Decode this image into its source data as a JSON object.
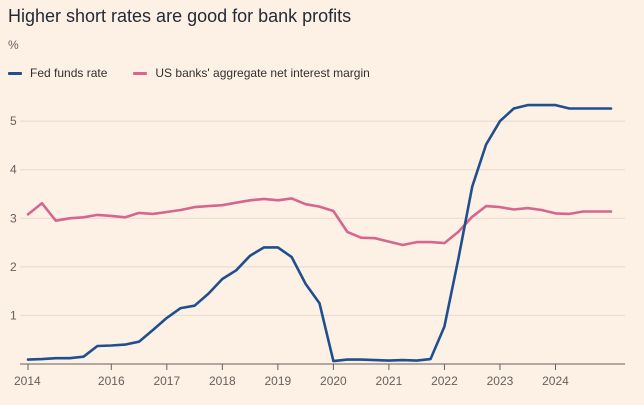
{
  "title": "Higher short rates are good for bank profits",
  "unit_label": "%",
  "colors": {
    "background": "#fdf1e6",
    "grid": "#e6d9ce",
    "axis": "#66605c"
  },
  "chart_data": {
    "type": "line",
    "title": "Higher short rates are good for bank profits",
    "ylabel": "%",
    "xlabel": "",
    "ylim": [
      0,
      5.6
    ],
    "xlim": [
      2014.0,
      2024.5
    ],
    "yticks": [
      1,
      2,
      3,
      4,
      5
    ],
    "xticks": [
      {
        "value": 2014.0,
        "label": "2014"
      },
      {
        "value": 2015.5,
        "label": "2016"
      },
      {
        "value": 2016.5,
        "label": "2017"
      },
      {
        "value": 2017.5,
        "label": "2018"
      },
      {
        "value": 2018.5,
        "label": "2019"
      },
      {
        "value": 2019.5,
        "label": "2020"
      },
      {
        "value": 2020.5,
        "label": "2021"
      },
      {
        "value": 2021.5,
        "label": "2022"
      },
      {
        "value": 2022.5,
        "label": "2023"
      },
      {
        "value": 2023.5,
        "label": "2024"
      }
    ],
    "grid": "horizontal",
    "legend_position": "top-left",
    "series": [
      {
        "name": "Fed funds rate",
        "color": "#1f4f8f",
        "x": [
          2014.0,
          2014.25,
          2014.5,
          2014.75,
          2015.0,
          2015.25,
          2015.5,
          2015.75,
          2016.0,
          2016.25,
          2016.5,
          2016.75,
          2017.0,
          2017.25,
          2017.5,
          2017.75,
          2018.0,
          2018.25,
          2018.5,
          2018.75,
          2019.0,
          2019.25,
          2019.5,
          2019.75,
          2020.0,
          2020.25,
          2020.5,
          2020.75,
          2021.0,
          2021.25,
          2021.5,
          2021.75,
          2022.0,
          2022.25,
          2022.5,
          2022.75,
          2023.0,
          2023.25,
          2023.5,
          2023.75,
          2024.0,
          2024.25,
          2024.5
        ],
        "values": [
          0.09,
          0.1,
          0.12,
          0.12,
          0.15,
          0.37,
          0.38,
          0.4,
          0.46,
          0.7,
          0.95,
          1.15,
          1.2,
          1.45,
          1.75,
          1.93,
          2.23,
          2.4,
          2.4,
          2.2,
          1.65,
          1.25,
          0.06,
          0.09,
          0.09,
          0.08,
          0.07,
          0.08,
          0.07,
          0.1,
          0.77,
          2.16,
          3.65,
          4.52,
          5.0,
          5.26,
          5.33,
          5.33,
          5.33,
          5.26,
          5.26,
          5.26,
          5.26
        ]
      },
      {
        "name": "US banks' aggregate net interest margin",
        "color": "#d7668f",
        "x": [
          2014.0,
          2014.25,
          2014.5,
          2014.75,
          2015.0,
          2015.25,
          2015.5,
          2015.75,
          2016.0,
          2016.25,
          2016.5,
          2016.75,
          2017.0,
          2017.25,
          2017.5,
          2017.75,
          2018.0,
          2018.25,
          2018.5,
          2018.75,
          2019.0,
          2019.25,
          2019.5,
          2019.75,
          2020.0,
          2020.25,
          2020.5,
          2020.75,
          2021.0,
          2021.25,
          2021.5,
          2021.75,
          2022.0,
          2022.25,
          2022.5,
          2022.75,
          2023.0,
          2023.25,
          2023.5,
          2023.75,
          2024.0,
          2024.25,
          2024.5
        ],
        "values": [
          3.08,
          3.31,
          2.95,
          3.0,
          3.02,
          3.07,
          3.05,
          3.02,
          3.11,
          3.09,
          3.13,
          3.17,
          3.23,
          3.25,
          3.27,
          3.32,
          3.37,
          3.4,
          3.37,
          3.41,
          3.29,
          3.24,
          3.15,
          2.72,
          2.6,
          2.59,
          2.52,
          2.45,
          2.51,
          2.51,
          2.49,
          2.72,
          3.03,
          3.25,
          3.23,
          3.18,
          3.21,
          3.17,
          3.1,
          3.09,
          3.14,
          3.14,
          3.14
        ]
      }
    ]
  }
}
